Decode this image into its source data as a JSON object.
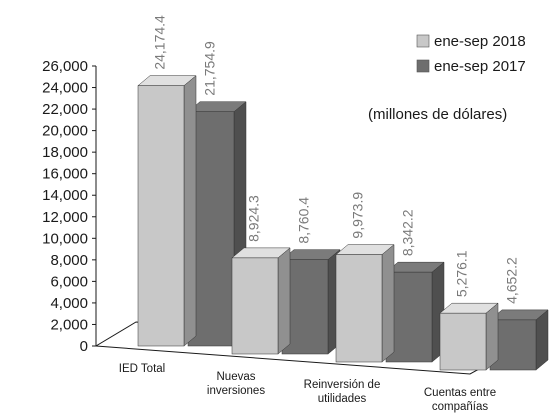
{
  "chart_data": {
    "type": "bar",
    "style": "3d-clustered-column",
    "categories": [
      [
        "IED Total"
      ],
      [
        "Nuevas",
        "inversiones"
      ],
      [
        "Reinversión de",
        "utilidades"
      ],
      [
        "Cuentas entre",
        "compañías"
      ]
    ],
    "series": [
      {
        "name": "ene-sep 2018",
        "values": [
          24174.4,
          8924.3,
          9973.9,
          5276.1
        ],
        "labels": [
          "24,174.4",
          "8,924.3",
          "9,973.9",
          "5,276.1"
        ],
        "color": "#c8c8c8"
      },
      {
        "name": "ene-sep 2017",
        "values": [
          21754.9,
          8760.4,
          8342.2,
          4652.2
        ],
        "labels": [
          "21,754.9",
          "8,760.4",
          "8,342.2",
          "4,652.2"
        ],
        "color": "#6e6e6e"
      }
    ],
    "yticks": [
      "0",
      "2,000",
      "4,000",
      "6,000",
      "8,000",
      "10,000",
      "12,000",
      "14,000",
      "16,000",
      "18,000",
      "20,000",
      "22,000",
      "24,000",
      "26,000"
    ],
    "ylim": [
      0,
      26000
    ],
    "annotation": "(millones de dólares)",
    "legend_position": "top-right",
    "grid": false
  }
}
